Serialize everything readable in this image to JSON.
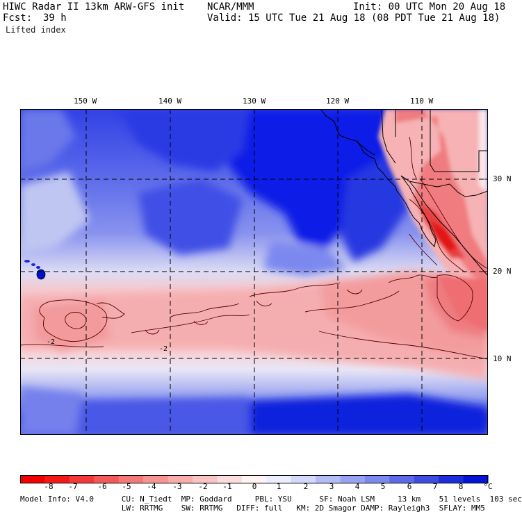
{
  "header": {
    "title": "HIWC Radar II 13km ARW-GFS init",
    "org": "NCAR/MMM",
    "init": "Init: 00 UTC Mon 20 Aug 18",
    "fcst_label": "Fcst:",
    "fcst_value": "39 h",
    "valid": "Valid: 15 UTC Tue 21 Aug 18 (08 PDT Tue 21 Aug 18)",
    "field": "Lifted index"
  },
  "map": {
    "lon_labels": [
      "150 W",
      "140 W",
      "130 W",
      "120 W",
      "110 W"
    ],
    "lat_labels": [
      "30 N",
      "20 N",
      "10 N"
    ],
    "contour_labels": [
      "-2",
      "-2"
    ],
    "colors": {
      "deep_blue": "#0a1ee6",
      "mid_blue": "#5a6ae8",
      "light_blue": "#b4bcf0",
      "pale": "#f4eef2",
      "light_red": "#f6b8b8",
      "mid_red": "#f07070",
      "deep_red": "#e62020",
      "coast": "#000000"
    }
  },
  "colorbar": {
    "labels": [
      "-8",
      "-7",
      "-6",
      "-5",
      "-4",
      "-3",
      "-2",
      "-1",
      "0",
      "1",
      "2",
      "3",
      "4",
      "5",
      "6",
      "7",
      "8"
    ],
    "unit": "°C",
    "colors": [
      "#f00000",
      "#f41818",
      "#f43838",
      "#f45858",
      "#f47878",
      "#f69494",
      "#f8acac",
      "#fac4c4",
      "#fcdcdc",
      "#fff4f4",
      "#eceeff",
      "#d4d8fb",
      "#b4bcf6",
      "#98a2f2",
      "#7c88ee",
      "#5c6ae8",
      "#3c4ce2",
      "#1c2edc",
      "#0414d6"
    ]
  },
  "footer": {
    "line1": "Model Info: V4.0      CU: N_Tiedt  MP: Goddard     PBL: YSU      SF: Noah LSM     13 km    51 levels  103 sec",
    "line2": "                      LW: RRTMG    SW: RRTMG   DIFF: full   KM: 2D Smagor DAMP: Rayleigh3  SFLAY: MM5"
  }
}
